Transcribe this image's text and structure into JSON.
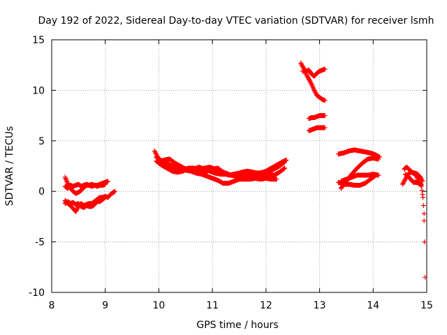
{
  "chart_data": {
    "type": "scatter",
    "title": "Day 192 of 2022, Sidereal Day-to-day VTEC variation (SDTVAR) for receiver lsmh",
    "xlabel": "GPS time / hours",
    "ylabel": "SDTVAR / TECUs",
    "xlim": [
      8,
      15
    ],
    "ylim": [
      -10,
      15
    ],
    "xticks": [
      8,
      9,
      10,
      11,
      12,
      13,
      14,
      15
    ],
    "yticks": [
      -10,
      -5,
      0,
      5,
      10,
      15
    ],
    "xtick_labels": [
      "8",
      "9",
      "10",
      "11",
      "12",
      "13",
      "14",
      "15"
    ],
    "ytick_labels": [
      "-10",
      "-5",
      "0",
      "5",
      "10",
      "15"
    ],
    "grid": true,
    "legend": "none",
    "marker": "+",
    "color": "#ff0000",
    "series": [
      {
        "tracks": [
          [
            [
              8.25,
              1.4
            ],
            [
              8.3,
              0.8
            ],
            [
              8.35,
              0.3
            ],
            [
              8.4,
              0.0
            ],
            [
              8.45,
              -0.2
            ],
            [
              8.5,
              -0.1
            ],
            [
              8.55,
              0.1
            ],
            [
              8.6,
              0.4
            ],
            [
              8.65,
              0.6
            ],
            [
              8.7,
              0.6
            ],
            [
              8.75,
              0.5
            ],
            [
              8.8,
              0.6
            ],
            [
              8.85,
              0.6
            ],
            [
              8.9,
              0.7
            ],
            [
              8.95,
              0.8
            ],
            [
              9.0,
              0.9
            ],
            [
              9.05,
              1.0
            ]
          ],
          [
            [
              8.25,
              0.5
            ],
            [
              8.3,
              0.3
            ],
            [
              8.35,
              0.6
            ],
            [
              8.4,
              0.5
            ],
            [
              8.45,
              0.6
            ],
            [
              8.5,
              0.7
            ],
            [
              8.55,
              0.5
            ],
            [
              8.6,
              0.6
            ],
            [
              8.65,
              0.7
            ],
            [
              8.7,
              0.6
            ],
            [
              8.75,
              0.7
            ],
            [
              8.8,
              0.6
            ],
            [
              8.85,
              0.5
            ],
            [
              8.9,
              0.6
            ],
            [
              8.95,
              0.6
            ],
            [
              9.0,
              0.7
            ]
          ],
          [
            [
              8.25,
              -0.9
            ],
            [
              8.3,
              -1.2
            ],
            [
              8.35,
              -1.4
            ],
            [
              8.4,
              -1.7
            ],
            [
              8.45,
              -2.0
            ],
            [
              8.5,
              -1.5
            ],
            [
              8.55,
              -1.2
            ],
            [
              8.6,
              -1.4
            ],
            [
              8.65,
              -1.3
            ],
            [
              8.7,
              -1.2
            ],
            [
              8.75,
              -1.2
            ],
            [
              8.8,
              -1.0
            ],
            [
              8.85,
              -0.8
            ],
            [
              8.9,
              -0.6
            ],
            [
              8.95,
              -0.6
            ],
            [
              9.0,
              -0.5
            ],
            [
              9.05,
              -0.6
            ],
            [
              9.1,
              -0.3
            ],
            [
              9.15,
              -0.1
            ],
            [
              9.18,
              0.0
            ]
          ],
          [
            [
              8.25,
              -1.2
            ],
            [
              8.3,
              -1.0
            ],
            [
              8.35,
              -1.2
            ],
            [
              8.4,
              -1.1
            ],
            [
              8.45,
              -1.3
            ],
            [
              8.5,
              -1.2
            ],
            [
              8.55,
              -1.5
            ],
            [
              8.6,
              -1.6
            ],
            [
              8.65,
              -1.4
            ],
            [
              8.7,
              -1.5
            ],
            [
              8.75,
              -1.5
            ],
            [
              8.8,
              -1.3
            ],
            [
              8.85,
              -1.0
            ],
            [
              8.9,
              -1.0
            ],
            [
              8.95,
              -0.8
            ],
            [
              9.0,
              -0.6
            ]
          ]
        ]
      },
      {
        "tracks": [
          [
            [
              9.92,
              4.0
            ],
            [
              10.0,
              3.2
            ],
            [
              10.1,
              2.9
            ],
            [
              10.2,
              2.6
            ],
            [
              10.3,
              2.4
            ],
            [
              10.4,
              2.2
            ],
            [
              10.5,
              2.1
            ],
            [
              10.6,
              2.0
            ],
            [
              10.7,
              1.8
            ],
            [
              10.8,
              1.7
            ],
            [
              10.9,
              1.5
            ],
            [
              11.0,
              1.3
            ],
            [
              11.1,
              1.1
            ],
            [
              11.2,
              0.8
            ],
            [
              11.3,
              0.8
            ],
            [
              11.4,
              1.0
            ],
            [
              11.5,
              1.2
            ],
            [
              11.6,
              1.2
            ],
            [
              11.7,
              1.2
            ],
            [
              11.8,
              1.3
            ],
            [
              11.9,
              1.2
            ],
            [
              12.0,
              1.3
            ],
            [
              12.1,
              1.2
            ],
            [
              12.2,
              1.2
            ]
          ],
          [
            [
              9.95,
              3.4
            ],
            [
              10.05,
              3.0
            ],
            [
              10.15,
              2.8
            ],
            [
              10.25,
              2.5
            ],
            [
              10.35,
              2.3
            ],
            [
              10.45,
              2.3
            ],
            [
              10.55,
              2.2
            ],
            [
              10.65,
              2.2
            ],
            [
              10.75,
              2.4
            ],
            [
              10.85,
              2.2
            ],
            [
              10.95,
              2.0
            ],
            [
              11.05,
              1.8
            ],
            [
              11.15,
              1.7
            ],
            [
              11.25,
              1.7
            ],
            [
              11.35,
              1.6
            ],
            [
              11.45,
              1.5
            ],
            [
              11.55,
              1.5
            ],
            [
              11.65,
              1.6
            ],
            [
              11.75,
              1.7
            ],
            [
              11.85,
              1.7
            ],
            [
              11.95,
              1.6
            ],
            [
              12.05,
              1.7
            ],
            [
              12.15,
              1.6
            ],
            [
              12.25,
              1.9
            ],
            [
              12.35,
              2.3
            ]
          ],
          [
            [
              9.95,
              3.0
            ],
            [
              10.05,
              2.6
            ],
            [
              10.15,
              2.3
            ],
            [
              10.25,
              2.0
            ],
            [
              10.35,
              1.9
            ],
            [
              10.45,
              2.0
            ],
            [
              10.55,
              2.3
            ],
            [
              10.65,
              2.3
            ],
            [
              10.75,
              2.1
            ],
            [
              10.85,
              2.3
            ],
            [
              10.95,
              2.4
            ],
            [
              11.05,
              2.2
            ],
            [
              11.15,
              2.0
            ],
            [
              11.25,
              1.8
            ],
            [
              11.35,
              1.6
            ],
            [
              11.45,
              1.7
            ],
            [
              11.55,
              1.9
            ],
            [
              11.65,
              2.0
            ],
            [
              11.75,
              1.9
            ],
            [
              11.85,
              1.8
            ],
            [
              11.95,
              1.9
            ],
            [
              12.05,
              2.0
            ],
            [
              12.15,
              2.2
            ],
            [
              12.25,
              2.5
            ],
            [
              12.35,
              2.9
            ]
          ],
          [
            [
              10.0,
              2.9
            ],
            [
              10.1,
              3.1
            ],
            [
              10.2,
              3.2
            ],
            [
              10.3,
              2.8
            ],
            [
              10.4,
              2.5
            ],
            [
              10.5,
              2.2
            ],
            [
              10.6,
              2.0
            ],
            [
              10.7,
              1.8
            ],
            [
              10.8,
              1.9
            ],
            [
              10.9,
              2.0
            ],
            [
              11.0,
              2.2
            ],
            [
              11.1,
              2.3
            ],
            [
              11.2,
              1.9
            ],
            [
              11.3,
              1.6
            ],
            [
              11.4,
              1.7
            ],
            [
              11.5,
              1.8
            ],
            [
              11.6,
              1.7
            ],
            [
              11.7,
              1.6
            ],
            [
              11.8,
              1.6
            ],
            [
              11.9,
              1.8
            ],
            [
              12.0,
              2.0
            ],
            [
              12.1,
              2.3
            ],
            [
              12.2,
              2.6
            ],
            [
              12.3,
              2.9
            ],
            [
              12.38,
              3.1
            ]
          ]
        ]
      },
      {
        "tracks": [
          [
            [
              12.65,
              12.7
            ],
            [
              12.7,
              12.2
            ],
            [
              12.75,
              11.6
            ],
            [
              12.8,
              11.1
            ],
            [
              12.85,
              10.6
            ],
            [
              12.9,
              10.0
            ],
            [
              12.95,
              9.5
            ],
            [
              13.0,
              9.3
            ],
            [
              13.05,
              9.1
            ],
            [
              13.1,
              9.0
            ]
          ],
          [
            [
              12.68,
              11.9
            ],
            [
              12.75,
              11.9
            ],
            [
              12.8,
              12.0
            ],
            [
              12.85,
              11.6
            ],
            [
              12.9,
              11.4
            ],
            [
              12.95,
              11.7
            ],
            [
              13.0,
              11.9
            ],
            [
              13.05,
              12.0
            ],
            [
              13.1,
              12.1
            ]
          ],
          [
            [
              12.8,
              7.2
            ],
            [
              12.85,
              7.3
            ],
            [
              12.9,
              7.3
            ],
            [
              12.95,
              7.4
            ],
            [
              13.0,
              7.5
            ],
            [
              13.05,
              7.5
            ],
            [
              13.1,
              7.5
            ]
          ],
          [
            [
              12.8,
              6.0
            ],
            [
              12.85,
              6.1
            ],
            [
              12.9,
              6.2
            ],
            [
              12.95,
              6.3
            ],
            [
              13.0,
              6.3
            ],
            [
              13.05,
              6.3
            ],
            [
              13.1,
              6.3
            ]
          ]
        ]
      },
      {
        "tracks": [
          [
            [
              13.35,
              3.7
            ],
            [
              13.45,
              3.8
            ],
            [
              13.55,
              4.0
            ],
            [
              13.65,
              4.1
            ],
            [
              13.75,
              4.0
            ],
            [
              13.85,
              3.9
            ],
            [
              13.95,
              3.8
            ],
            [
              14.05,
              3.6
            ],
            [
              14.12,
              3.4
            ]
          ],
          [
            [
              13.4,
              0.3
            ],
            [
              13.5,
              1.0
            ],
            [
              13.6,
              1.7
            ],
            [
              13.7,
              2.3
            ],
            [
              13.8,
              2.8
            ],
            [
              13.9,
              3.2
            ],
            [
              14.0,
              3.3
            ],
            [
              14.1,
              3.2
            ]
          ],
          [
            [
              13.35,
              0.9
            ],
            [
              13.45,
              0.7
            ],
            [
              13.55,
              0.7
            ],
            [
              13.65,
              0.6
            ],
            [
              13.75,
              0.6
            ],
            [
              13.85,
              0.8
            ],
            [
              13.95,
              1.2
            ],
            [
              14.05,
              1.6
            ]
          ],
          [
            [
              13.4,
              1.0
            ],
            [
              13.5,
              1.2
            ],
            [
              13.6,
              1.4
            ],
            [
              13.7,
              1.6
            ],
            [
              13.8,
              1.6
            ],
            [
              13.9,
              1.6
            ],
            [
              14.0,
              1.7
            ],
            [
              14.1,
              1.6
            ]
          ]
        ]
      },
      {
        "tracks": [
          [
            [
              14.55,
              0.7
            ],
            [
              14.6,
              1.2
            ],
            [
              14.65,
              1.7
            ],
            [
              14.7,
              1.9
            ],
            [
              14.75,
              1.8
            ],
            [
              14.8,
              1.6
            ],
            [
              14.85,
              1.0
            ],
            [
              14.9,
              0.5
            ],
            [
              14.92,
              -0.3
            ],
            [
              14.93,
              -0.6
            ],
            [
              14.94,
              -1.4
            ],
            [
              14.95,
              -2.2
            ],
            [
              14.95,
              -2.9
            ],
            [
              14.96,
              -5.0
            ],
            [
              14.97,
              -8.5
            ]
          ],
          [
            [
              14.58,
              2.2
            ],
            [
              14.62,
              2.4
            ],
            [
              14.67,
              2.2
            ],
            [
              14.72,
              1.9
            ],
            [
              14.78,
              1.8
            ],
            [
              14.83,
              1.7
            ],
            [
              14.88,
              1.4
            ],
            [
              14.92,
              1.0
            ]
          ],
          [
            [
              14.6,
              1.7
            ],
            [
              14.65,
              1.5
            ],
            [
              14.7,
              1.2
            ],
            [
              14.75,
              0.9
            ],
            [
              14.8,
              0.9
            ],
            [
              14.85,
              0.8
            ],
            [
              14.9,
              0.7
            ]
          ]
        ]
      }
    ]
  }
}
